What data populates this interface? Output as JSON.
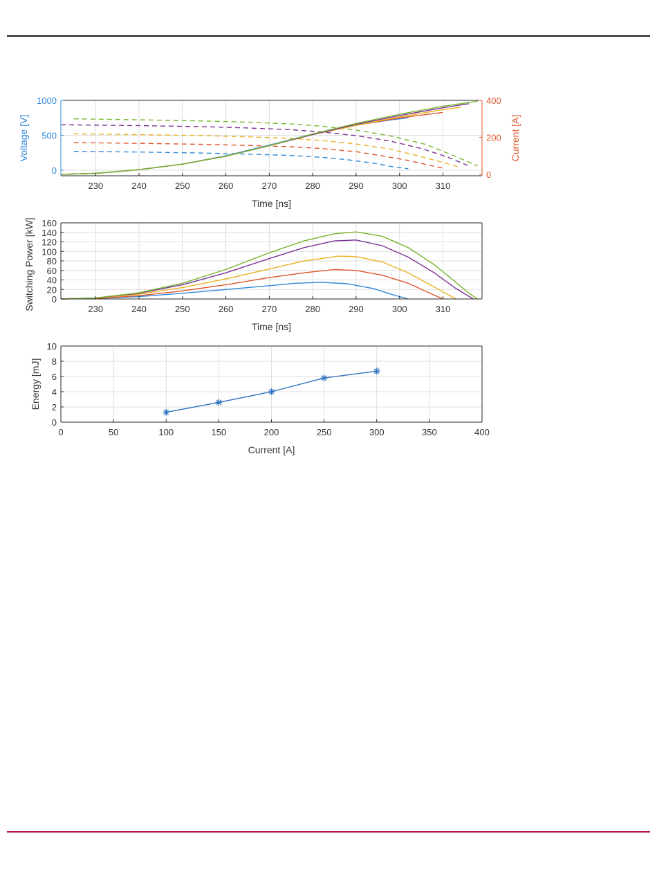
{
  "chart_data": [
    {
      "type": "line",
      "xlabel": "Time [ns]",
      "ylabel_left": "Voltage [V]",
      "ylabel_right": "Current [A]",
      "xlim": [
        222,
        319
      ],
      "ylim_left": [
        -80,
        1000
      ],
      "ylim_right": [
        -8,
        400
      ],
      "xticks": [
        230,
        240,
        250,
        260,
        270,
        280,
        290,
        300,
        310
      ],
      "yticks_left": [
        0,
        500,
        1000
      ],
      "yticks_right": [
        0,
        200,
        400
      ],
      "grid": true,
      "left_axis_color": "#2f87d8",
      "right_axis_color": "#e0552a",
      "voltage_series": [
        {
          "color": "#2f87d8",
          "x": [
            225,
            240,
            255,
            265,
            275,
            282,
            288,
            294,
            298,
            302
          ],
          "y": [
            270,
            260,
            245,
            230,
            210,
            185,
            150,
            100,
            55,
            20
          ]
        },
        {
          "color": "#e0552a",
          "x": [
            225,
            240,
            255,
            265,
            275,
            282,
            290,
            296,
            302,
            307,
            310
          ],
          "y": [
            395,
            385,
            370,
            355,
            335,
            310,
            265,
            205,
            140,
            70,
            30
          ]
        },
        {
          "color": "#eab020",
          "x": [
            225,
            240,
            255,
            265,
            275,
            282,
            290,
            298,
            304,
            310,
            314
          ],
          "y": [
            520,
            510,
            495,
            478,
            455,
            425,
            375,
            300,
            210,
            110,
            40
          ]
        },
        {
          "color": "#7b3294",
          "x": [
            222,
            240,
            255,
            265,
            275,
            282,
            290,
            298,
            305,
            311,
            316
          ],
          "y": [
            650,
            638,
            622,
            605,
            580,
            548,
            495,
            415,
            310,
            190,
            60
          ]
        },
        {
          "color": "#77b52c",
          "x": [
            225,
            240,
            255,
            265,
            275,
            282,
            290,
            298,
            306,
            312,
            318
          ],
          "y": [
            735,
            722,
            705,
            688,
            662,
            630,
            575,
            490,
            370,
            220,
            60
          ]
        }
      ],
      "current_series": [
        {
          "color": "#2f87d8",
          "x": [
            222,
            230,
            240,
            250,
            260,
            270,
            280,
            290,
            300,
            302
          ],
          "y": [
            0,
            5,
            25,
            55,
            100,
            158,
            218,
            268,
            300,
            306
          ]
        },
        {
          "color": "#e0552a",
          "x": [
            222,
            230,
            240,
            250,
            260,
            270,
            280,
            290,
            300,
            310
          ],
          "y": [
            0,
            5,
            25,
            55,
            98,
            155,
            215,
            265,
            305,
            335
          ]
        },
        {
          "color": "#eab020",
          "x": [
            222,
            230,
            240,
            250,
            260,
            270,
            280,
            290,
            300,
            310,
            314
          ],
          "y": [
            0,
            5,
            25,
            55,
            98,
            155,
            215,
            265,
            310,
            350,
            362
          ]
        },
        {
          "color": "#7b3294",
          "x": [
            222,
            230,
            240,
            250,
            260,
            270,
            280,
            290,
            300,
            310,
            316
          ],
          "y": [
            0,
            5,
            25,
            55,
            98,
            155,
            215,
            270,
            318,
            360,
            382
          ]
        },
        {
          "color": "#77b52c",
          "x": [
            222,
            230,
            240,
            250,
            260,
            270,
            280,
            290,
            300,
            310,
            318
          ],
          "y": [
            0,
            5,
            25,
            55,
            98,
            155,
            218,
            275,
            325,
            368,
            395
          ]
        }
      ]
    },
    {
      "type": "line",
      "xlabel": "Time [ns]",
      "ylabel": "Switching Power [kW]",
      "xlim": [
        222,
        319
      ],
      "ylim": [
        0,
        160
      ],
      "xticks": [
        230,
        240,
        250,
        260,
        270,
        280,
        290,
        300,
        310
      ],
      "yticks": [
        0,
        20,
        40,
        60,
        80,
        100,
        120,
        140,
        160
      ],
      "grid": true,
      "series": [
        {
          "color": "#2f87d8",
          "x": [
            222,
            230,
            240,
            250,
            260,
            270,
            276,
            282,
            288,
            294,
            298,
            302
          ],
          "y": [
            0,
            1,
            5,
            12,
            20,
            28,
            33,
            35,
            32,
            22,
            10,
            0
          ]
        },
        {
          "color": "#e0552a",
          "x": [
            222,
            230,
            240,
            250,
            260,
            270,
            278,
            285,
            290,
            296,
            302,
            307,
            310
          ],
          "y": [
            0,
            1,
            7,
            17,
            30,
            45,
            55,
            62,
            60,
            50,
            33,
            12,
            0
          ]
        },
        {
          "color": "#eab020",
          "x": [
            222,
            230,
            240,
            250,
            260,
            270,
            278,
            286,
            290,
            296,
            302,
            308,
            313
          ],
          "y": [
            0,
            2,
            10,
            24,
            42,
            63,
            80,
            90,
            89,
            78,
            55,
            25,
            0
          ]
        },
        {
          "color": "#7b3294",
          "x": [
            222,
            230,
            240,
            250,
            260,
            270,
            278,
            285,
            290,
            296,
            302,
            308,
            313,
            317
          ],
          "y": [
            0,
            2,
            12,
            30,
            55,
            85,
            108,
            122,
            124,
            112,
            88,
            55,
            22,
            0
          ]
        },
        {
          "color": "#77b52c",
          "x": [
            222,
            230,
            240,
            250,
            260,
            270,
            278,
            285,
            290,
            296,
            302,
            308,
            313,
            316,
            318
          ],
          "y": [
            0,
            2,
            13,
            33,
            62,
            97,
            122,
            137,
            141,
            132,
            108,
            72,
            35,
            12,
            0
          ]
        }
      ]
    },
    {
      "type": "line",
      "xlabel": "Current [A]",
      "ylabel": "Energy [mJ]",
      "xlim": [
        0,
        400
      ],
      "ylim": [
        0,
        10
      ],
      "xticks": [
        0,
        50,
        100,
        150,
        200,
        250,
        300,
        350,
        400
      ],
      "yticks": [
        0,
        2,
        4,
        6,
        8,
        10
      ],
      "grid": true,
      "marker": "*",
      "series": [
        {
          "color": "#2f72c0",
          "x": [
            100,
            150,
            200,
            250,
            300
          ],
          "y": [
            1.3,
            2.6,
            4.0,
            5.8,
            6.7
          ]
        }
      ]
    }
  ]
}
